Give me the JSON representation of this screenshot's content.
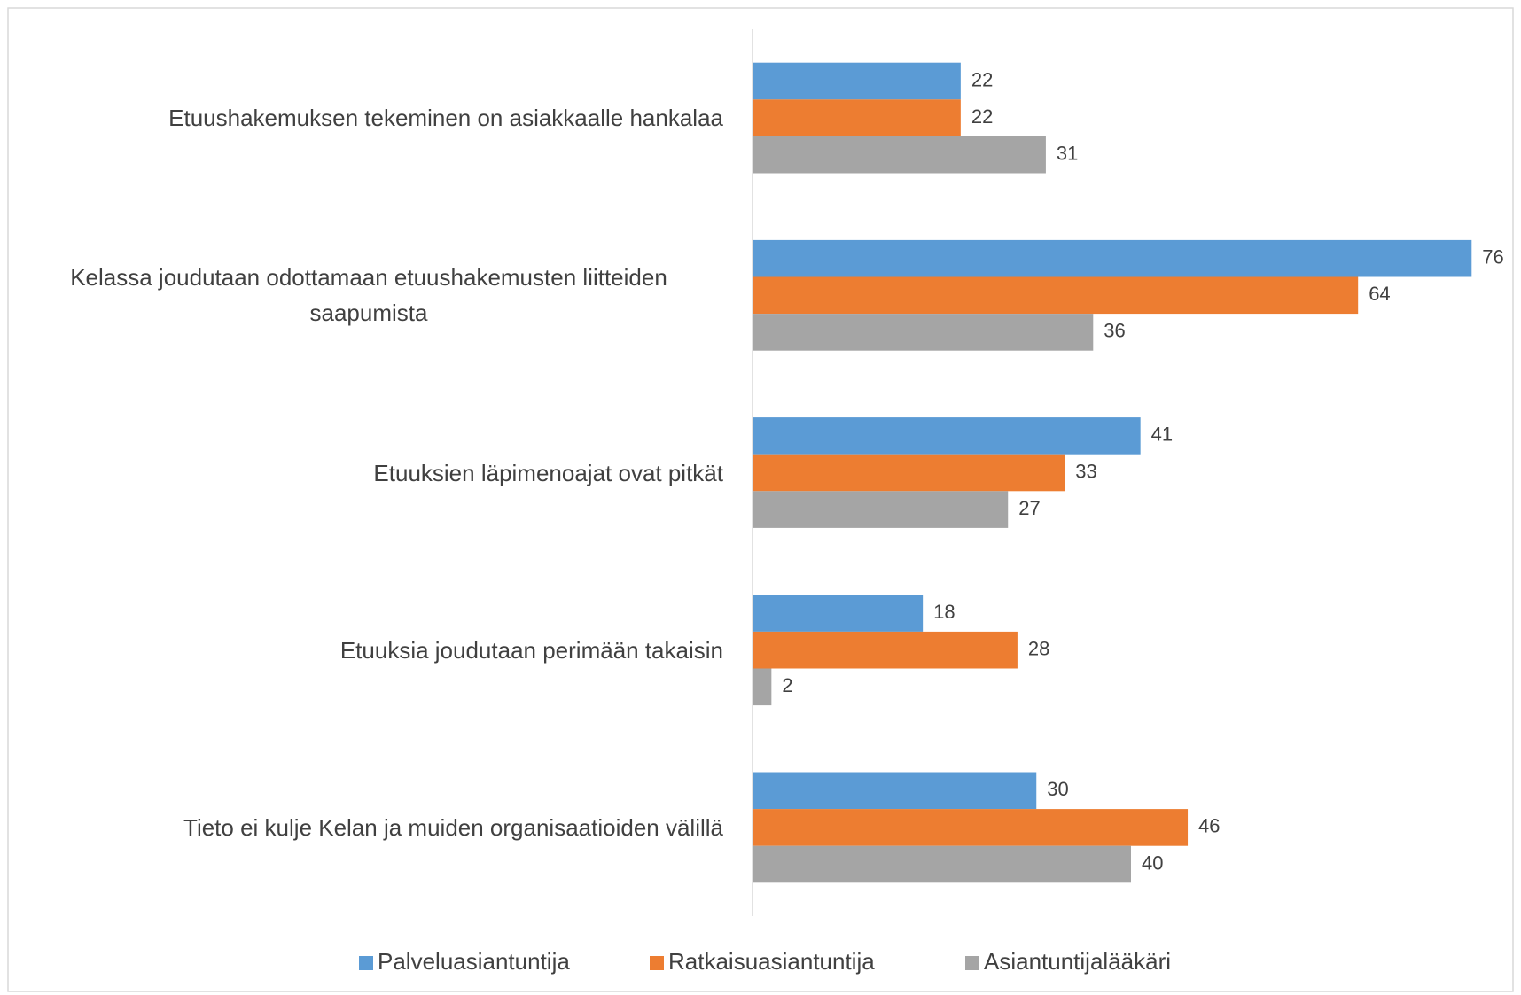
{
  "chart_data": {
    "type": "bar",
    "orientation": "horizontal",
    "categories": [
      "Etuushakemuksen tekeminen on asiakkaalle hankalaa",
      "Kelassa joudutaan odottamaan etuushakemusten liitteiden saapumista",
      "Etuuksien läpimenoajat ovat pitkät",
      "Etuuksia joudutaan perimään takaisin",
      "Tieto ei kulje Kelan ja muiden organisaatioiden välillä"
    ],
    "series": [
      {
        "name": "Palveluasiantuntija",
        "color": "#5b9bd5",
        "values": [
          22,
          76,
          41,
          18,
          30
        ]
      },
      {
        "name": "Ratkaisuasiantuntija",
        "color": "#ed7d31",
        "values": [
          22,
          64,
          33,
          28,
          46
        ]
      },
      {
        "name": "Asiantuntijalääkäri",
        "color": "#a5a5a5",
        "values": [
          31,
          36,
          27,
          2,
          40
        ]
      }
    ],
    "xlim": [
      0,
      80
    ],
    "legend": "bottom"
  }
}
